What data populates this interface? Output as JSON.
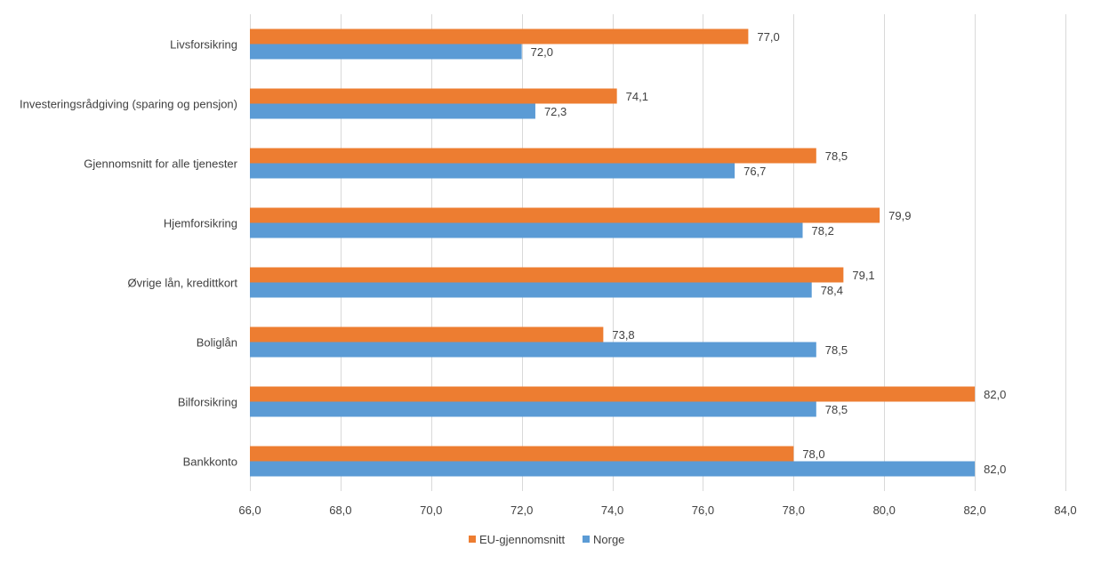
{
  "chart_data": {
    "type": "bar",
    "orientation": "horizontal",
    "title": "",
    "xlabel": "",
    "ylabel": "",
    "xlim": [
      66.0,
      84.0
    ],
    "x_ticks": [
      "66,0",
      "68,0",
      "70,0",
      "72,0",
      "74,0",
      "76,0",
      "78,0",
      "80,0",
      "82,0",
      "84,0"
    ],
    "x_tick_values": [
      66,
      68,
      70,
      72,
      74,
      76,
      78,
      80,
      82,
      84
    ],
    "grid": true,
    "legend_position": "bottom",
    "categories": [
      "Livsforsikring",
      "Investeringsrådgiving (sparing og pensjon)",
      "Gjennomsnitt for alle tjenester",
      "Hjemforsikring",
      "Øvrige lån, kredittkort",
      "Boliglån",
      "Bilforsikring",
      "Bankkonto"
    ],
    "series": [
      {
        "name": "EU-gjennomsnitt",
        "color": "#ed7d31",
        "values": [
          77.0,
          74.1,
          78.5,
          79.9,
          79.1,
          73.8,
          82.0,
          78.0
        ],
        "labels": [
          "77,0",
          "74,1",
          "78,5",
          "79,9",
          "79,1",
          "73,8",
          "82,0",
          "78,0"
        ]
      },
      {
        "name": "Norge",
        "color": "#5b9bd5",
        "values": [
          72.0,
          72.3,
          76.7,
          78.2,
          78.4,
          78.5,
          78.5,
          82.0
        ],
        "labels": [
          "72,0",
          "72,3",
          "76,7",
          "78,2",
          "78,4",
          "78,5",
          "78,5",
          "82,0"
        ]
      }
    ]
  }
}
